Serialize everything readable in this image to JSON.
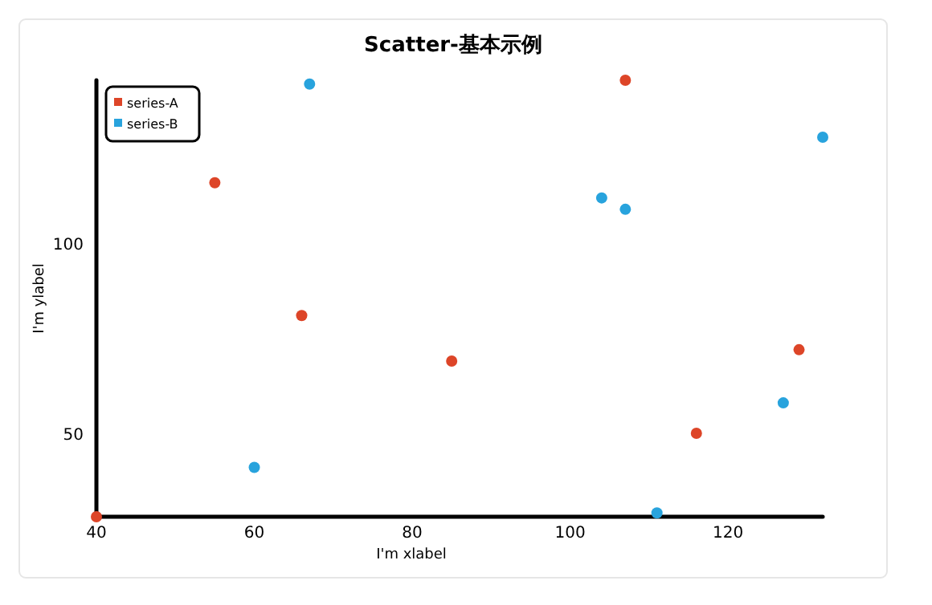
{
  "chart_data": {
    "type": "scatter",
    "title": "Scatter-基本示例",
    "xlabel": "I'm xlabel",
    "ylabel": "I'm ylabel",
    "xlim": [
      40,
      132
    ],
    "ylim": [
      28,
      143
    ],
    "xticks": [
      40,
      60,
      80,
      100,
      120
    ],
    "yticks": [
      50,
      100
    ],
    "grid": false,
    "legend": "top left",
    "marker": "circle",
    "series": [
      {
        "name": "series-A",
        "color": "#dd4528",
        "x": [
          40,
          55,
          66,
          85,
          107,
          116,
          129
        ],
        "values": [
          28,
          116,
          81,
          69,
          143,
          50,
          72
        ]
      },
      {
        "name": "series-B",
        "color": "#28a3dd",
        "x": [
          67,
          60,
          104,
          107,
          111,
          127,
          132
        ],
        "values": [
          142,
          41,
          112,
          109,
          29,
          58,
          128
        ]
      }
    ]
  }
}
